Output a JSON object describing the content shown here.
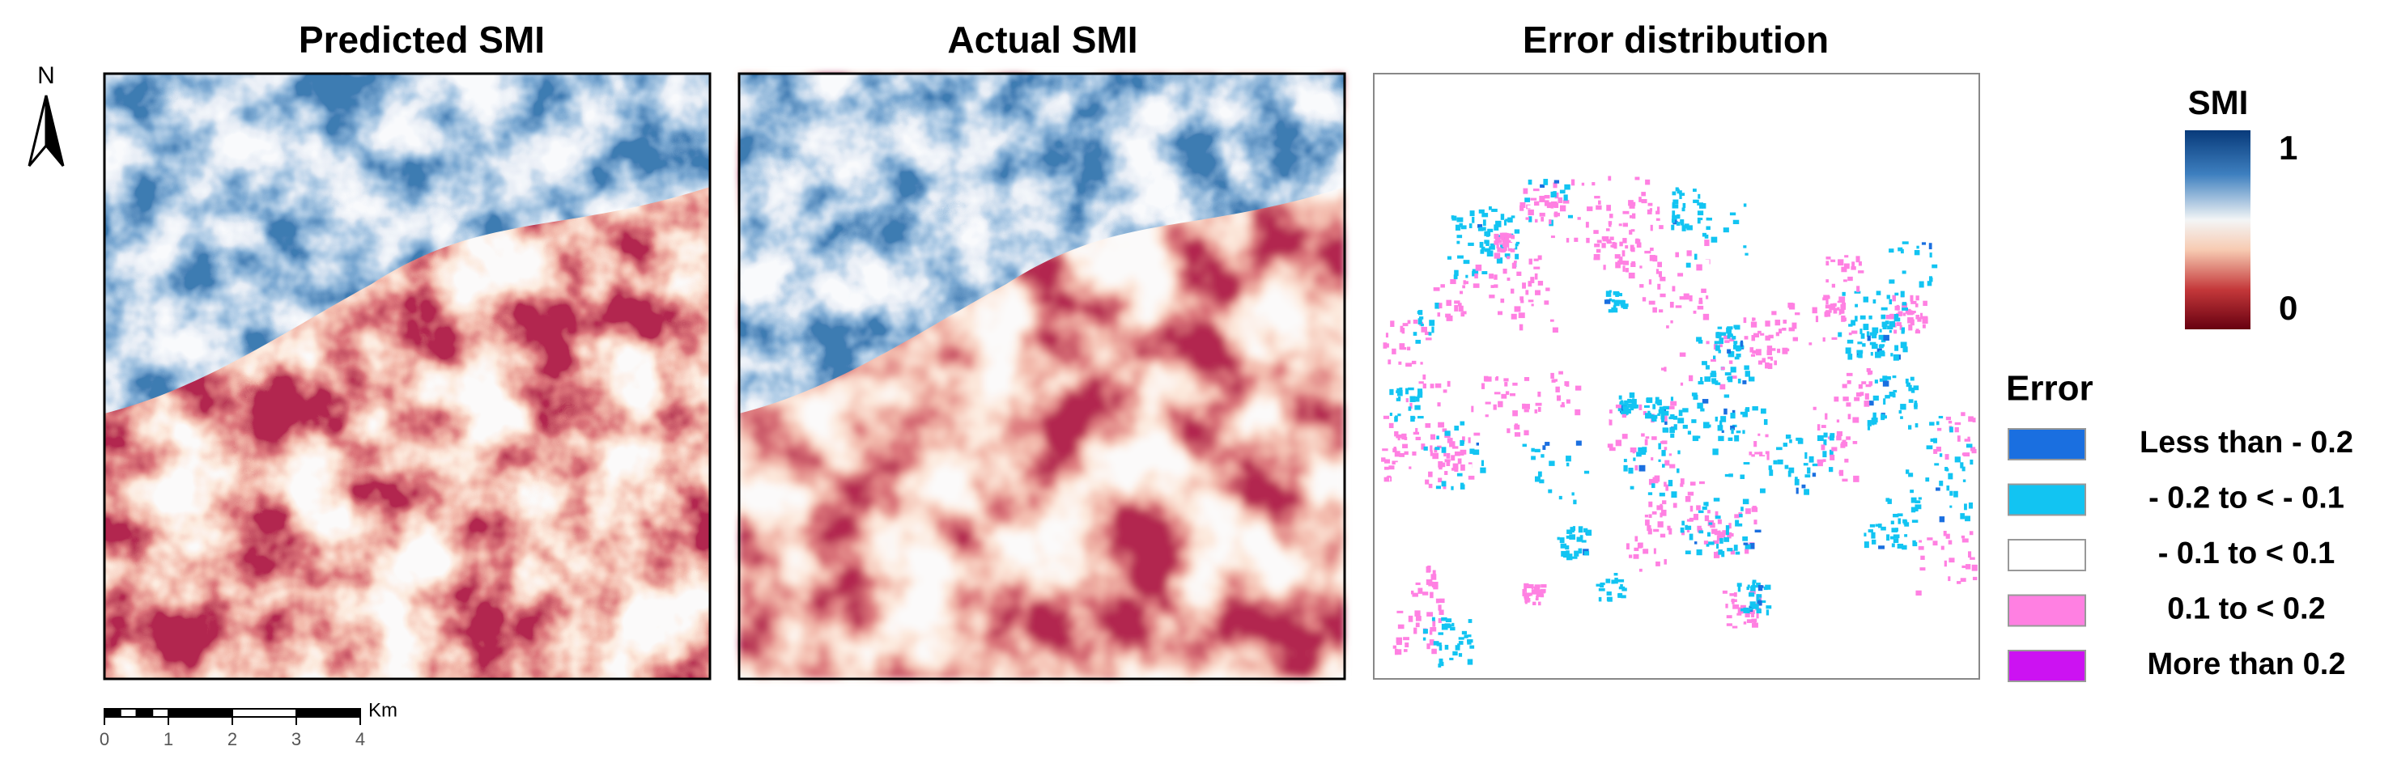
{
  "panels": [
    {
      "title": "Predicted SMI"
    },
    {
      "title": "Actual SMI"
    },
    {
      "title": "Error distribution"
    }
  ],
  "north_arrow": {
    "label": "N"
  },
  "smi_legend": {
    "title": "SMI",
    "max_label": "1",
    "min_label": "0"
  },
  "error_legend": {
    "title": "Error",
    "items": [
      {
        "label": "Less than - 0.2",
        "color": "#1a6fe0"
      },
      {
        "label": "- 0.2 to < - 0.1",
        "color": "#12c4f2"
      },
      {
        "label": "- 0.1 to < 0.1",
        "color": "#ffffff"
      },
      {
        "label": "0.1 to < 0.2",
        "color": "#ff80e2"
      },
      {
        "label": "More than 0.2",
        "color": "#cc12f2"
      }
    ]
  },
  "scale_bar": {
    "unit": "Km",
    "ticks": [
      0,
      1,
      2,
      3,
      4
    ]
  }
}
